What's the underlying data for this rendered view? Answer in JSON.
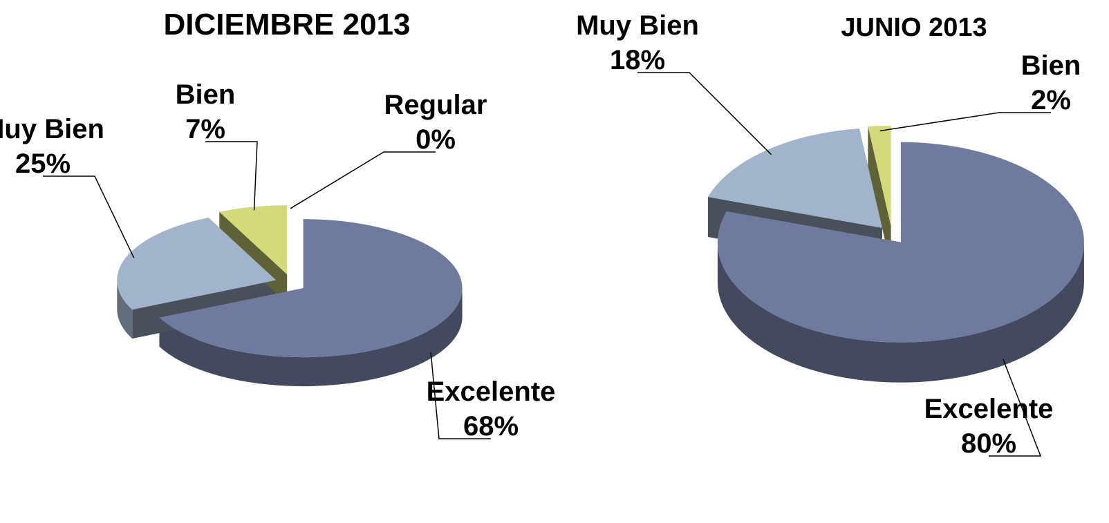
{
  "chart_data": [
    {
      "type": "pie",
      "title": "DICIEMBRE 2013",
      "categories": [
        "Excelente",
        "Muy Bien",
        "Bien",
        "Regular"
      ],
      "values": [
        68,
        25,
        7,
        0
      ],
      "value_labels": [
        "68%",
        "25%",
        "7%",
        "0%"
      ],
      "colors": [
        "#6f7a9f",
        "#a0b5cb",
        "#d4d97a",
        "#e6b85c"
      ]
    },
    {
      "type": "pie",
      "title": "JUNIO 2013",
      "categories": [
        "Excelente",
        "Muy Bien",
        "Bien"
      ],
      "values": [
        80,
        18,
        2
      ],
      "value_labels": [
        "80%",
        "18%",
        "2%"
      ],
      "colors": [
        "#6f7a9f",
        "#a0b5cb",
        "#d4d97a"
      ]
    }
  ]
}
